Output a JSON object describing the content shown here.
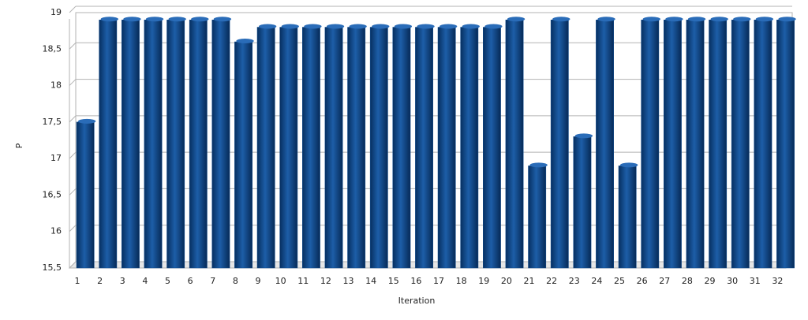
{
  "chart_data": {
    "type": "bar",
    "x_label": "Iteration",
    "y_label": "P",
    "categories": [
      "1",
      "2",
      "3",
      "4",
      "5",
      "6",
      "7",
      "8",
      "9",
      "10",
      "11",
      "12",
      "13",
      "14",
      "15",
      "16",
      "17",
      "18",
      "19",
      "20",
      "21",
      "22",
      "23",
      "24",
      "25",
      "26",
      "27",
      "28",
      "29",
      "30",
      "31",
      "32"
    ],
    "values": [
      17.5,
      18.9,
      18.9,
      18.9,
      18.9,
      18.9,
      18.9,
      18.6,
      18.8,
      18.8,
      18.8,
      18.8,
      18.8,
      18.8,
      18.8,
      18.8,
      18.8,
      18.8,
      18.8,
      18.9,
      16.9,
      18.9,
      17.3,
      18.9,
      16.9,
      18.9,
      18.9,
      18.9,
      18.9,
      18.9,
      18.9,
      18.9
    ],
    "color": "#0d4a8f",
    "ylim": [
      15.5,
      19
    ],
    "yticks": [
      {
        "value": 15.5,
        "label": "15,5"
      },
      16,
      {
        "value": 16.5,
        "label": "16,5"
      },
      17,
      {
        "value": 17.5,
        "label": "17,5"
      },
      18,
      {
        "value": 18.5,
        "label": "18,5"
      },
      19
    ],
    "grid": true
  }
}
